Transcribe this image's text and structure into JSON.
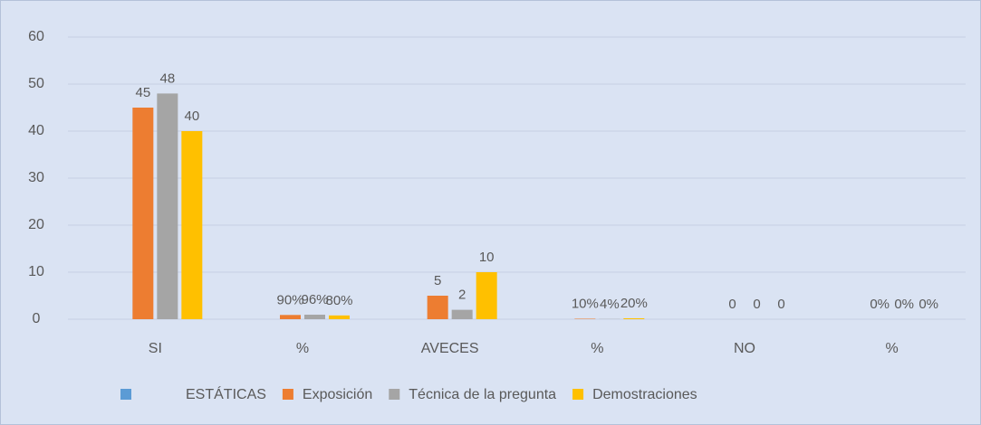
{
  "chart_data": {
    "type": "bar",
    "categories": [
      "SI",
      "%",
      "AVECES",
      "%",
      "NO",
      "%"
    ],
    "series": [
      {
        "name": "ESTÁTICAS",
        "color": "#5b9bd5",
        "values": [
          null,
          null,
          null,
          null,
          null,
          null
        ]
      },
      {
        "name": "Exposición",
        "color": "#ed7d31",
        "values": [
          45,
          0.9,
          5,
          0.1,
          0,
          0
        ],
        "value_labels": [
          "45",
          "90%",
          "5",
          "10%",
          "0",
          "0%"
        ]
      },
      {
        "name": "Técnica de la pregunta",
        "color": "#a5a5a5",
        "values": [
          48,
          0.96,
          2,
          0.04,
          0,
          0
        ],
        "value_labels": [
          "48",
          "96%",
          "2",
          "4%",
          "0",
          "0%"
        ]
      },
      {
        "name": "Demostraciones",
        "color": "#ffc000",
        "values": [
          40,
          0.8,
          10,
          0.2,
          0,
          0
        ],
        "value_labels": [
          "40",
          "80%",
          "10",
          "20%",
          "0",
          "0%"
        ]
      }
    ],
    "ylim": [
      0,
      60
    ],
    "yticks": [
      0,
      10,
      20,
      30,
      40,
      50,
      60
    ],
    "grid": true,
    "legend": "bottom"
  }
}
